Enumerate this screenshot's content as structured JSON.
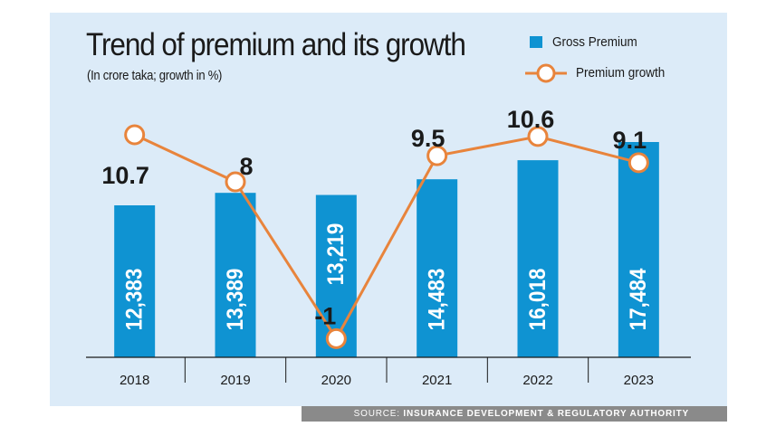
{
  "chart_data": {
    "type": "bar",
    "title": "Trend of premium and its growth",
    "subtitle": "(In crore taka; growth in %)",
    "categories": [
      "2018",
      "2019",
      "2020",
      "2021",
      "2022",
      "2023"
    ],
    "series": [
      {
        "name": "Gross Premium",
        "type": "bar",
        "values": [
          12383,
          13389,
          13219,
          14483,
          16018,
          17484
        ],
        "labels": [
          "12,383",
          "13,389",
          "13,219",
          "14,483",
          "16,018",
          "17,484"
        ],
        "color": "#0f93d2"
      },
      {
        "name": "Premium growth",
        "type": "line",
        "values": [
          10.7,
          8,
          -1,
          9.5,
          10.6,
          9.1
        ],
        "labels": [
          "10.7",
          "8",
          "-1",
          "9.5",
          "10.6",
          "9.1"
        ],
        "color": "#e8843c"
      }
    ],
    "legend_position": "top-right",
    "grid": false
  },
  "source": {
    "prefix": "SOURCE: ",
    "name": "INSURANCE DEVELOPMENT & REGULATORY AUTHORITY"
  }
}
